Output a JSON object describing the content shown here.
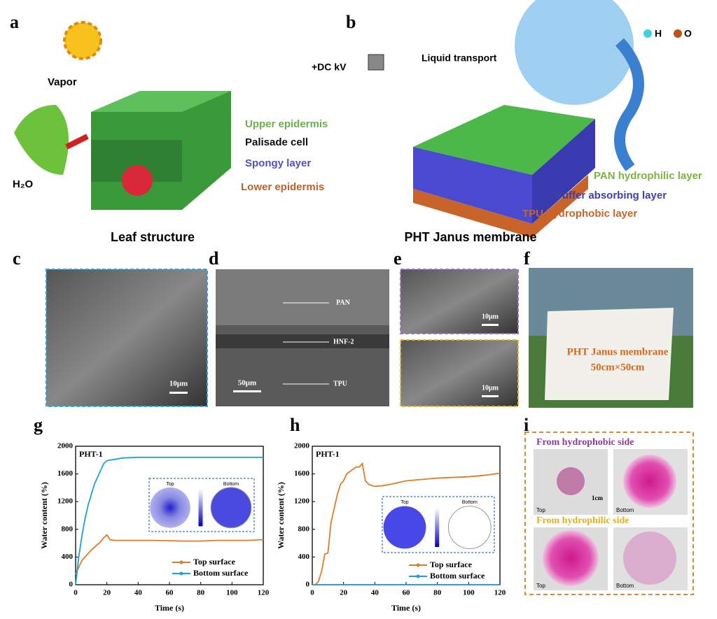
{
  "panel_labels": [
    "a",
    "b",
    "c",
    "d",
    "e",
    "f",
    "g",
    "h",
    "i"
  ],
  "panel_a": {
    "vapor": "Vapor",
    "water": "H₂O",
    "layers": [
      "Upper epidermis",
      "Palisade cell",
      "Spongy layer",
      "Lower epidermis"
    ],
    "caption": "Leaf structure"
  },
  "panel_b": {
    "voltage": "+DC kV",
    "transport": "Liquid transport",
    "atoms": [
      "H",
      "O"
    ],
    "layers": [
      "PAN hydrophilic layer",
      "Buffer absorbing layer",
      "TPU hydrophobic layer"
    ],
    "caption": "PHT Janus membrane"
  },
  "panel_c": {
    "scale": "10μm"
  },
  "panel_d": {
    "labels": [
      "PAN",
      "HNF-2",
      "TPU"
    ],
    "scale": "50μm"
  },
  "panel_e": {
    "scales": [
      "10μm",
      "10μm"
    ]
  },
  "panel_f": {
    "lines": [
      "PHT Janus membrane",
      "50cm×50cm"
    ]
  },
  "panel_i": {
    "rows": [
      {
        "title": "From hydrophobic side",
        "labels": [
          "Top",
          "Bottom"
        ],
        "scale": "1cm"
      },
      {
        "title": "From hydrophilic side",
        "labels": [
          "Top",
          "Bottom"
        ]
      }
    ]
  },
  "chart_data": [
    {
      "type": "line",
      "annotation": "PHT-1",
      "x_label": "Time (s)",
      "y_label": "Water content (%)",
      "x": [
        0,
        2,
        4,
        6,
        8,
        10,
        12,
        14,
        16,
        18,
        20,
        22,
        25,
        30,
        40,
        50,
        60,
        70,
        80,
        90,
        100,
        110,
        120
      ],
      "series": [
        {
          "name": "Top surface",
          "color": "#e07b28",
          "values": [
            150,
            250,
            350,
            400,
            450,
            500,
            540,
            580,
            620,
            680,
            720,
            650,
            640,
            640,
            640,
            640,
            635,
            630,
            630,
            640,
            640,
            640,
            650
          ]
        },
        {
          "name": "Bottom surface",
          "color": "#1aa0e0",
          "values": [
            0,
            400,
            700,
            950,
            1150,
            1300,
            1450,
            1550,
            1650,
            1750,
            1790,
            1800,
            1810,
            1830,
            1840,
            1840,
            1840,
            1840,
            1840,
            1840,
            1840,
            1840,
            1840
          ]
        }
      ],
      "xlim": [
        0,
        120
      ],
      "xticks": [
        0,
        20,
        40,
        60,
        80,
        100,
        120
      ],
      "ylim": [
        0,
        2000
      ],
      "yticks": [
        0,
        400,
        800,
        1200,
        1600,
        2000
      ],
      "legend": "lower right",
      "inset_labels": [
        "Top",
        "Bottom"
      ]
    },
    {
      "type": "line",
      "annotation": "PHT-1",
      "x_label": "Time (s)",
      "y_label": "Water content (%)",
      "x": [
        0,
        2,
        4,
        6,
        8,
        10,
        12,
        14,
        16,
        18,
        20,
        22,
        25,
        28,
        30,
        32,
        34,
        36,
        40,
        45,
        50,
        60,
        70,
        80,
        90,
        100,
        110,
        120
      ],
      "series": [
        {
          "name": "Top surface",
          "color": "#e07b28",
          "values": [
            0,
            0,
            50,
            200,
            440,
            460,
            900,
            1100,
            1300,
            1450,
            1500,
            1600,
            1650,
            1700,
            1700,
            1750,
            1500,
            1450,
            1420,
            1430,
            1450,
            1500,
            1520,
            1540,
            1550,
            1560,
            1580,
            1610
          ]
        },
        {
          "name": "Bottom surface",
          "color": "#1aa0e0",
          "values": [
            0,
            0,
            0,
            0,
            0,
            0,
            0,
            0,
            0,
            0,
            0,
            0,
            0,
            0,
            0,
            0,
            0,
            0,
            0,
            0,
            0,
            0,
            0,
            0,
            0,
            0,
            0,
            0
          ]
        }
      ],
      "xlim": [
        0,
        120
      ],
      "xticks": [
        0,
        20,
        40,
        60,
        80,
        100,
        120
      ],
      "ylim": [
        0,
        2000
      ],
      "yticks": [
        0,
        400,
        800,
        1200,
        1600,
        2000
      ],
      "legend": "lower right",
      "inset_labels": [
        "Top",
        "Bottom"
      ]
    }
  ]
}
